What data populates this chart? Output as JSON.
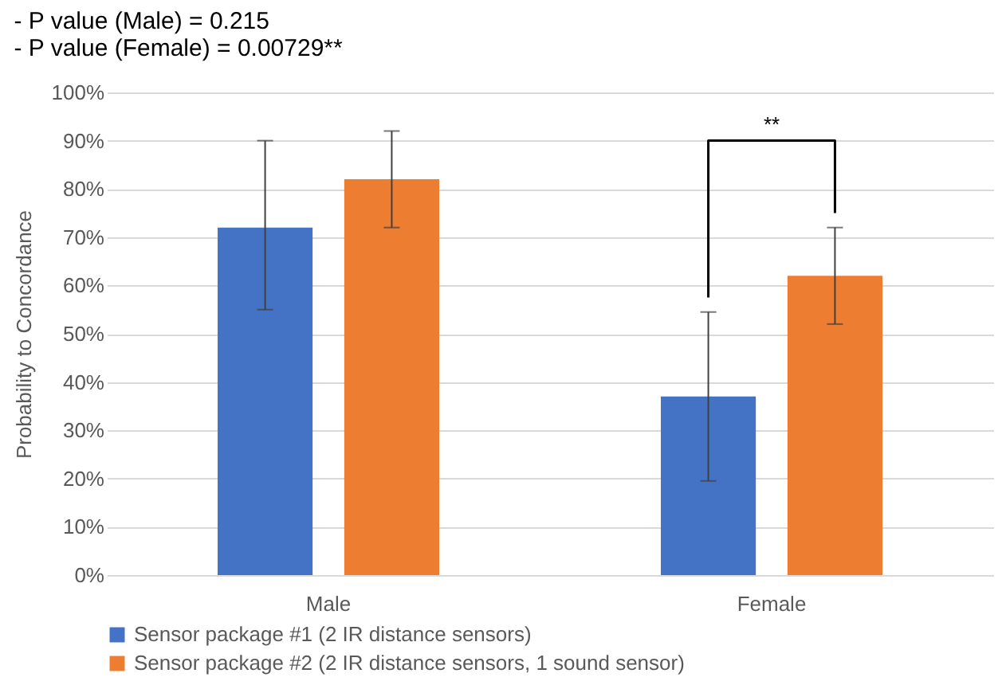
{
  "chart_data": {
    "type": "bar",
    "title": [
      "- P value (Male) = 0.215",
      "- P value (Female) = 0.00729**"
    ],
    "ylabel": "Probability to Concordance",
    "categories": [
      "Male",
      "Female"
    ],
    "series": [
      {
        "name": "Sensor package #1 (2 IR distance sensors)",
        "color": "#4472c4",
        "values": [
          72,
          37
        ],
        "errors": [
          [
            55,
            90
          ],
          [
            19.5,
            54.5
          ]
        ]
      },
      {
        "name": "Sensor package #2 (2 IR distance sensors, 1 sound sensor)",
        "color": "#ed7d31",
        "values": [
          82,
          62
        ],
        "errors": [
          [
            72,
            92
          ],
          [
            52,
            72
          ]
        ]
      }
    ],
    "ylim": [
      0,
      100
    ],
    "yticks": [
      {
        "value": 0,
        "label": "0%"
      },
      {
        "value": 10,
        "label": "10%"
      },
      {
        "value": 20,
        "label": "20%"
      },
      {
        "value": 30,
        "label": "30%"
      },
      {
        "value": 40,
        "label": "40%"
      },
      {
        "value": 50,
        "label": "50%"
      },
      {
        "value": 60,
        "label": "60%"
      },
      {
        "value": 70,
        "label": "70%"
      },
      {
        "value": 80,
        "label": "80%"
      },
      {
        "value": 90,
        "label": "90%"
      },
      {
        "value": 100,
        "label": "100%"
      }
    ],
    "annotations": [
      "**"
    ],
    "grid": "y",
    "legend": "bottom"
  }
}
